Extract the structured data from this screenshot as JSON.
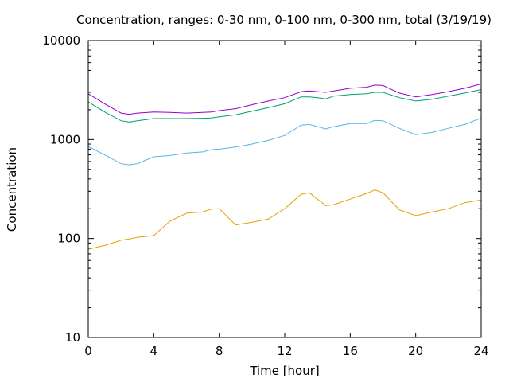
{
  "chart_data": {
    "type": "line",
    "title": "Concentration, ranges: 0-30 nm, 0-100 nm, 0-300 nm, total (3/19/19)",
    "xlabel": "Time [hour]",
    "ylabel": "Concentration",
    "xlim": [
      0,
      24
    ],
    "ylim": [
      10,
      10000
    ],
    "yscale": "log",
    "grid": false,
    "legend": "none",
    "xticks": [
      0,
      4,
      8,
      12,
      16,
      20,
      24
    ],
    "xtick_labels": [
      "0",
      "4",
      "8",
      "12",
      "16",
      "20",
      "24"
    ],
    "yticks": [
      10,
      100,
      1000,
      10000
    ],
    "ytick_labels": [
      "10",
      "100",
      "1000",
      "10000"
    ],
    "x": [
      0,
      1,
      2,
      2.5,
      3,
      4,
      5,
      6,
      7,
      7.5,
      8,
      9,
      10,
      11,
      12,
      13,
      13.5,
      14,
      14.5,
      15,
      16,
      17,
      17.5,
      18,
      19,
      20,
      21,
      22,
      23,
      24
    ],
    "series": [
      {
        "color": "#e69f00",
        "values": [
          78,
          85,
          96,
          99,
          103,
          107,
          150,
          180,
          186,
          198,
          200,
          137,
          146,
          157,
          200,
          280,
          290,
          250,
          215,
          220,
          250,
          285,
          310,
          290,
          195,
          170,
          185,
          200,
          230,
          245
        ]
      },
      {
        "color": "#56b4e9",
        "values": [
          850,
          700,
          570,
          555,
          570,
          670,
          690,
          730,
          750,
          790,
          800,
          840,
          900,
          980,
          1100,
          1400,
          1420,
          1350,
          1280,
          1350,
          1450,
          1450,
          1560,
          1550,
          1300,
          1120,
          1180,
          1300,
          1420,
          1650
        ]
      },
      {
        "color": "#009e73",
        "values": [
          2400,
          1900,
          1550,
          1500,
          1550,
          1630,
          1630,
          1630,
          1640,
          1650,
          1700,
          1780,
          1930,
          2100,
          2300,
          2700,
          2700,
          2650,
          2580,
          2750,
          2850,
          2900,
          3000,
          3000,
          2650,
          2450,
          2550,
          2750,
          2950,
          3200
        ]
      },
      {
        "color": "#9400d3",
        "values": [
          2900,
          2300,
          1850,
          1800,
          1850,
          1900,
          1880,
          1850,
          1880,
          1900,
          1960,
          2050,
          2250,
          2450,
          2650,
          3050,
          3100,
          3050,
          3000,
          3100,
          3300,
          3380,
          3550,
          3520,
          2950,
          2700,
          2850,
          3050,
          3300,
          3650
        ]
      }
    ]
  }
}
